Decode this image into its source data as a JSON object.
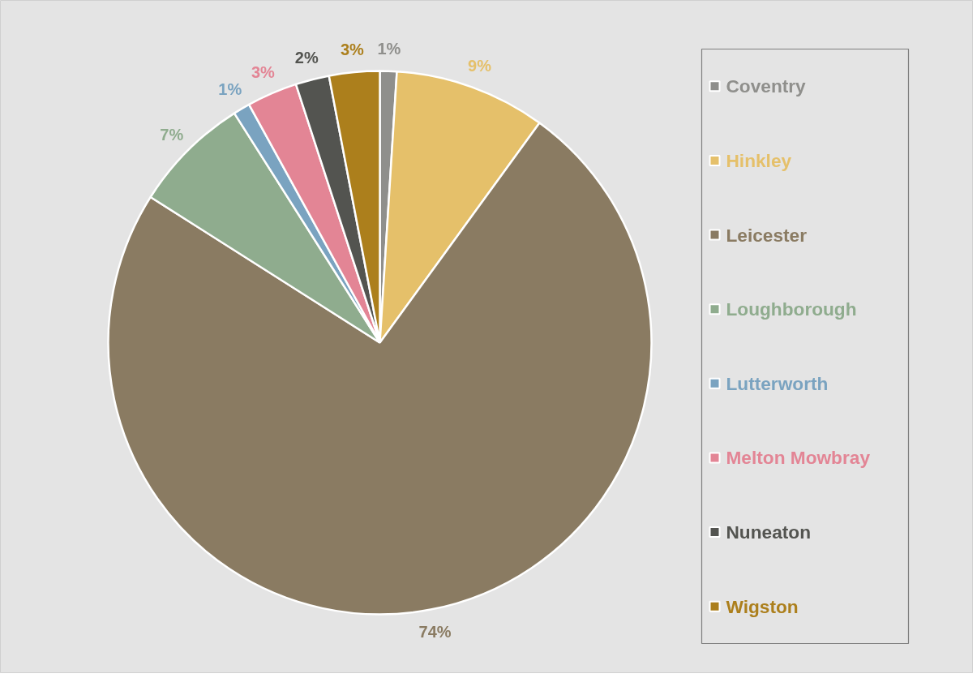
{
  "chart_data": {
    "type": "pie",
    "categories": [
      "Coventry",
      "Hinkley",
      "Leicester",
      "Loughborough",
      "Lutterworth",
      "Melton Mowbray",
      "Nuneaton",
      "Wigston"
    ],
    "values": [
      1,
      9,
      74,
      7,
      1,
      3,
      2,
      3
    ],
    "colors": [
      "#8f8f8c",
      "#e5c06a",
      "#8a7b62",
      "#8fac8e",
      "#7aa3c0",
      "#e38595",
      "#535450",
      "#ac7f1c"
    ],
    "value_labels": [
      "1%",
      "9%",
      "74%",
      "7%",
      "1%",
      "3%",
      "2%",
      "3%"
    ],
    "legend": "right"
  }
}
